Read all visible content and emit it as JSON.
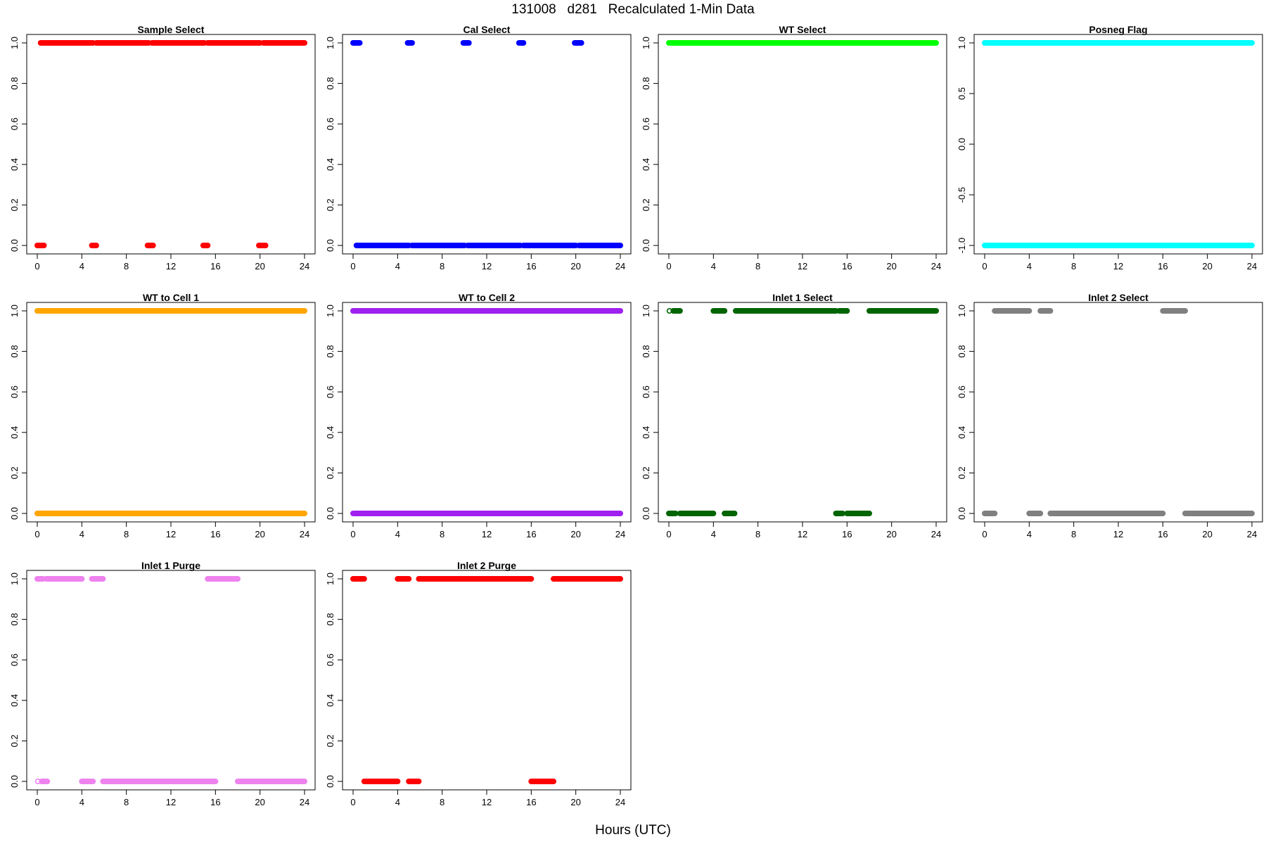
{
  "page_title": "131008   d281   Recalculated 1-Min Data",
  "x_axis_title": "Hours (UTC)",
  "chart_data": [
    {
      "type": "scatter",
      "title": "Sample Select",
      "color": "#ff0000",
      "xlim": [
        0,
        24
      ],
      "ylim": [
        0,
        1
      ],
      "xticks": [
        "0",
        "4",
        "8",
        "12",
        "16",
        "20",
        "24"
      ],
      "yticks": [
        "0.0",
        "0.2",
        "0.4",
        "0.6",
        "0.8",
        "1.0"
      ],
      "segments": [
        {
          "y": 1,
          "x": [
            0.3,
            5.0
          ]
        },
        {
          "y": 1,
          "x": [
            5.3,
            10.0
          ]
        },
        {
          "y": 1,
          "x": [
            10.3,
            15.0
          ]
        },
        {
          "y": 1,
          "x": [
            15.3,
            20.0
          ]
        },
        {
          "y": 1,
          "x": [
            20.3,
            24.0
          ]
        },
        {
          "y": 0,
          "x": [
            0.0,
            0.6
          ]
        },
        {
          "y": 0,
          "x": [
            4.9,
            5.3
          ]
        },
        {
          "y": 0,
          "x": [
            9.9,
            10.4
          ]
        },
        {
          "y": 0,
          "x": [
            14.9,
            15.3
          ]
        },
        {
          "y": 0,
          "x": [
            19.9,
            20.5
          ]
        }
      ]
    },
    {
      "type": "scatter",
      "title": "Cal Select",
      "color": "#0000ff",
      "xlim": [
        0,
        24
      ],
      "ylim": [
        0,
        1
      ],
      "xticks": [
        "0",
        "4",
        "8",
        "12",
        "16",
        "20",
        "24"
      ],
      "yticks": [
        "0.0",
        "0.2",
        "0.4",
        "0.6",
        "0.8",
        "1.0"
      ],
      "segments": [
        {
          "y": 1,
          "x": [
            0.0,
            0.6
          ]
        },
        {
          "y": 1,
          "x": [
            4.9,
            5.3
          ]
        },
        {
          "y": 1,
          "x": [
            9.9,
            10.4
          ]
        },
        {
          "y": 1,
          "x": [
            14.9,
            15.3
          ]
        },
        {
          "y": 1,
          "x": [
            19.9,
            20.5
          ]
        },
        {
          "y": 0,
          "x": [
            0.3,
            5.0
          ]
        },
        {
          "y": 0,
          "x": [
            5.3,
            10.0
          ]
        },
        {
          "y": 0,
          "x": [
            10.3,
            15.0
          ]
        },
        {
          "y": 0,
          "x": [
            15.3,
            20.0
          ]
        },
        {
          "y": 0,
          "x": [
            20.3,
            24.0
          ]
        }
      ]
    },
    {
      "type": "scatter",
      "title": "WT Select",
      "color": "#00ff00",
      "xlim": [
        0,
        24
      ],
      "ylim": [
        0,
        1
      ],
      "xticks": [
        "0",
        "4",
        "8",
        "12",
        "16",
        "20",
        "24"
      ],
      "yticks": [
        "0.0",
        "0.2",
        "0.4",
        "0.6",
        "0.8",
        "1.0"
      ],
      "segments": [
        {
          "y": 1,
          "x": [
            0.0,
            24.0
          ]
        }
      ]
    },
    {
      "type": "scatter",
      "title": "Posneg Flag",
      "color": "#00ffff",
      "xlim": [
        0,
        24
      ],
      "ylim": [
        -1,
        1
      ],
      "xticks": [
        "0",
        "4",
        "8",
        "12",
        "16",
        "20",
        "24"
      ],
      "yticks": [
        "-1.0",
        "-0.5",
        "0.0",
        "0.5",
        "1.0"
      ],
      "segments": [
        {
          "y": 1,
          "x": [
            0.0,
            24.0
          ]
        },
        {
          "y": -1,
          "x": [
            0.0,
            24.0
          ]
        }
      ]
    },
    {
      "type": "scatter",
      "title": "WT to Cell 1",
      "color": "#ffa500",
      "xlim": [
        0,
        24
      ],
      "ylim": [
        0,
        1
      ],
      "xticks": [
        "0",
        "4",
        "8",
        "12",
        "16",
        "20",
        "24"
      ],
      "yticks": [
        "0.0",
        "0.2",
        "0.4",
        "0.6",
        "0.8",
        "1.0"
      ],
      "segments": [
        {
          "y": 1,
          "x": [
            0.0,
            24.0
          ]
        },
        {
          "y": 0,
          "x": [
            0.0,
            24.0
          ]
        }
      ]
    },
    {
      "type": "scatter",
      "title": "WT to Cell 2",
      "color": "#a020f0",
      "xlim": [
        0,
        24
      ],
      "ylim": [
        0,
        1
      ],
      "xticks": [
        "0",
        "4",
        "8",
        "12",
        "16",
        "20",
        "24"
      ],
      "yticks": [
        "0.0",
        "0.2",
        "0.4",
        "0.6",
        "0.8",
        "1.0"
      ],
      "segments": [
        {
          "y": 1,
          "x": [
            0.0,
            24.0
          ]
        },
        {
          "y": 0,
          "x": [
            0.0,
            24.0
          ]
        }
      ]
    },
    {
      "type": "scatter",
      "title": "Inlet 1 Select",
      "color": "#006400",
      "xlim": [
        0,
        24
      ],
      "ylim": [
        0,
        1
      ],
      "xticks": [
        "0",
        "4",
        "8",
        "12",
        "16",
        "20",
        "24"
      ],
      "yticks": [
        "0.0",
        "0.2",
        "0.4",
        "0.6",
        "0.8",
        "1.0"
      ],
      "segments": [
        {
          "y": 1,
          "x": [
            0.0,
            0.1
          ]
        },
        {
          "y": 1,
          "x": [
            0.4,
            1.0
          ]
        },
        {
          "y": 1,
          "x": [
            4.0,
            5.0
          ]
        },
        {
          "y": 1,
          "x": [
            6.0,
            15.0
          ]
        },
        {
          "y": 1,
          "x": [
            15.3,
            16.0
          ]
        },
        {
          "y": 1,
          "x": [
            18.0,
            24.0
          ]
        },
        {
          "y": 0,
          "x": [
            0.0,
            0.6
          ]
        },
        {
          "y": 0,
          "x": [
            1.0,
            4.0
          ]
        },
        {
          "y": 0,
          "x": [
            5.0,
            5.9
          ]
        },
        {
          "y": 0,
          "x": [
            15.0,
            15.6
          ]
        },
        {
          "y": 0,
          "x": [
            16.0,
            18.0
          ]
        }
      ]
    },
    {
      "type": "scatter",
      "title": "Inlet 2 Select",
      "color": "#808080",
      "xlim": [
        0,
        24
      ],
      "ylim": [
        0,
        1
      ],
      "xticks": [
        "0",
        "4",
        "8",
        "12",
        "16",
        "20",
        "24"
      ],
      "yticks": [
        "0.0",
        "0.2",
        "0.4",
        "0.6",
        "0.8",
        "1.0"
      ],
      "segments": [
        {
          "y": 1,
          "x": [
            0.9,
            4.0
          ]
        },
        {
          "y": 1,
          "x": [
            5.0,
            5.9
          ]
        },
        {
          "y": 1,
          "x": [
            16.0,
            18.0
          ]
        },
        {
          "y": 0,
          "x": [
            0.0,
            0.9
          ]
        },
        {
          "y": 0,
          "x": [
            4.0,
            5.0
          ]
        },
        {
          "y": 0,
          "x": [
            5.9,
            16.0
          ]
        },
        {
          "y": 0,
          "x": [
            18.0,
            24.0
          ]
        }
      ]
    },
    {
      "type": "scatter",
      "title": "Inlet 1 Purge",
      "color": "#ee82ee",
      "xlim": [
        0,
        24
      ],
      "ylim": [
        0,
        1
      ],
      "xticks": [
        "0",
        "4",
        "8",
        "12",
        "16",
        "20",
        "24"
      ],
      "yticks": [
        "0.0",
        "0.2",
        "0.4",
        "0.6",
        "0.8",
        "1.0"
      ],
      "segments": [
        {
          "y": 1,
          "x": [
            0.0,
            0.5
          ]
        },
        {
          "y": 1,
          "x": [
            0.8,
            4.0
          ]
        },
        {
          "y": 1,
          "x": [
            4.9,
            5.9
          ]
        },
        {
          "y": 1,
          "x": [
            15.3,
            15.9
          ]
        },
        {
          "y": 1,
          "x": [
            16.0,
            18.0
          ]
        },
        {
          "y": 0,
          "x": [
            0.0,
            0.1
          ]
        },
        {
          "y": 0,
          "x": [
            0.4,
            0.9
          ]
        },
        {
          "y": 0,
          "x": [
            4.0,
            5.0
          ]
        },
        {
          "y": 0,
          "x": [
            5.9,
            15.4
          ]
        },
        {
          "y": 0,
          "x": [
            15.5,
            16.0
          ]
        },
        {
          "y": 0,
          "x": [
            18.0,
            24.0
          ]
        }
      ]
    },
    {
      "type": "scatter",
      "title": "Inlet 2 Purge",
      "color": "#ff0000",
      "xlim": [
        0,
        24
      ],
      "ylim": [
        0,
        1
      ],
      "xticks": [
        "0",
        "4",
        "8",
        "12",
        "16",
        "20",
        "24"
      ],
      "yticks": [
        "0.0",
        "0.2",
        "0.4",
        "0.6",
        "0.8",
        "1.0"
      ],
      "segments": [
        {
          "y": 1,
          "x": [
            0.0,
            1.0
          ]
        },
        {
          "y": 1,
          "x": [
            4.0,
            5.0
          ]
        },
        {
          "y": 1,
          "x": [
            5.9,
            16.0
          ]
        },
        {
          "y": 1,
          "x": [
            18.0,
            24.0
          ]
        },
        {
          "y": 0,
          "x": [
            1.0,
            4.0
          ]
        },
        {
          "y": 0,
          "x": [
            5.0,
            5.9
          ]
        },
        {
          "y": 0,
          "x": [
            16.0,
            18.0
          ]
        }
      ]
    }
  ]
}
